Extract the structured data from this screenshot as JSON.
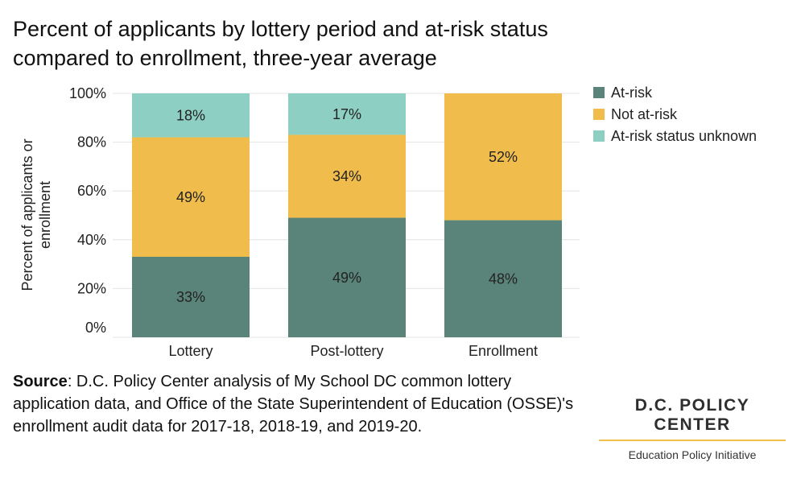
{
  "title": "Percent of applicants by lottery period and at-risk status compared to enrollment, three-year average",
  "source": {
    "label": "Source",
    "text": ": D.C. Policy Center analysis of My School DC common lottery application data, and Office of the State Superintendent of Education (OSSE)'s enrollment audit data for 2017-18, 2018-19, and 2019-20."
  },
  "brand": {
    "name": "D.C. POLICY CENTER",
    "subtitle": "Education Policy Initiative"
  },
  "chart_data": {
    "type": "bar",
    "stacked": true,
    "categories": [
      "Lottery",
      "Post-lottery",
      "Enrollment"
    ],
    "series": [
      {
        "name": "At-risk",
        "values": [
          33,
          49,
          48
        ],
        "labels": [
          "33%",
          "49%",
          "48%"
        ],
        "color": "#5a8479"
      },
      {
        "name": "Not at-risk",
        "values": [
          49,
          34,
          52
        ],
        "labels": [
          "49%",
          "34%",
          "52%"
        ],
        "color": "#f0bc4c"
      },
      {
        "name": "At-risk status unknown",
        "values": [
          18,
          17,
          0
        ],
        "labels": [
          "18%",
          "17%",
          ""
        ],
        "color": "#8ecfc3"
      }
    ],
    "ylabel_lines": [
      "Percent of applicants or",
      "enrollment"
    ],
    "ylim": [
      0,
      100
    ],
    "yticks": [
      0,
      20,
      40,
      60,
      80,
      100
    ],
    "ytick_labels": [
      "0%",
      "20%",
      "40%",
      "60%",
      "80%",
      "100%"
    ],
    "legend_position": "right",
    "grid": true
  }
}
